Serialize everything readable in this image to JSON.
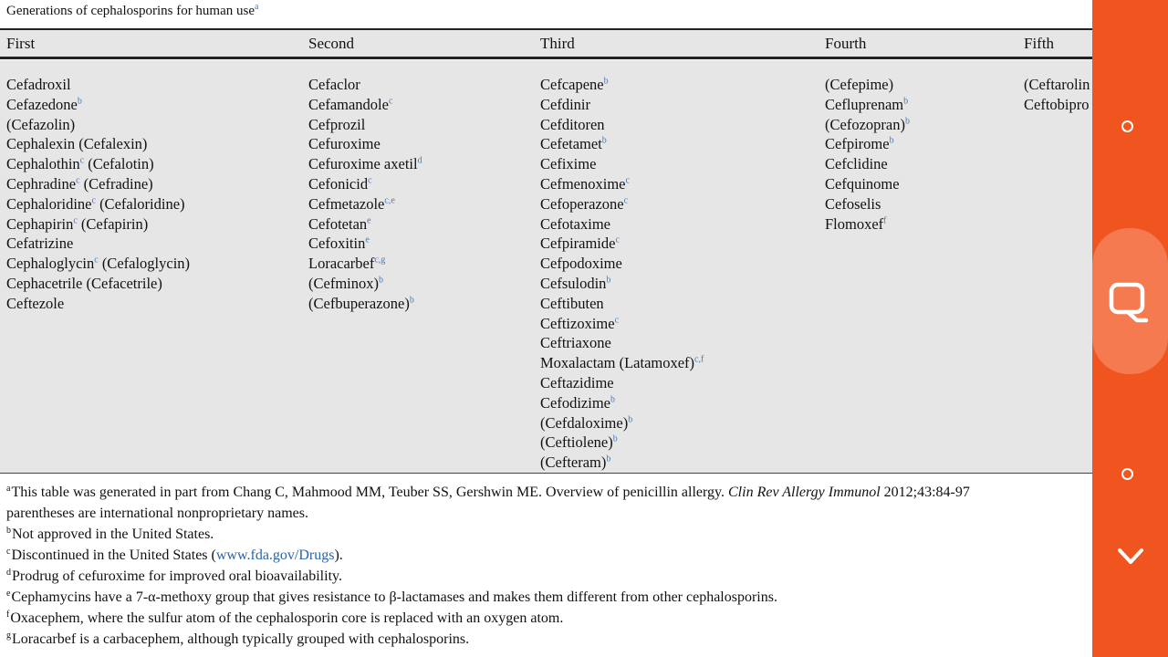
{
  "title": {
    "text": "Generations of cephalosporins for human use",
    "sup": "a"
  },
  "headers": [
    "First",
    "Second",
    "Third",
    "Fourth",
    "Fifth"
  ],
  "columns": [
    [
      {
        "name": "Cefadroxil",
        "sup": ""
      },
      {
        "name": "Cefazedone",
        "sup": "b"
      },
      {
        "name": "(Cefazolin)",
        "sup": ""
      },
      {
        "name": "Cephalexin (Cefalexin)",
        "sup": ""
      },
      {
        "name": "Cephalothin",
        "sup": "c",
        "rest": " (Cefalotin)"
      },
      {
        "name": "Cephradine",
        "sup": "c",
        "rest": " (Cefradine)"
      },
      {
        "name": "Cephaloridine",
        "sup": "c",
        "rest": " (Cefaloridine)"
      },
      {
        "name": "Cephapirin",
        "sup": "c",
        "rest": " (Cefapirin)"
      },
      {
        "name": "Cefatrizine",
        "sup": ""
      },
      {
        "name": "Cephaloglycin",
        "sup": "c",
        "rest": " (Cefaloglycin)"
      },
      {
        "name": "Cephacetrile (Cefacetrile)",
        "sup": ""
      },
      {
        "name": "Ceftezole",
        "sup": ""
      }
    ],
    [
      {
        "name": "Cefaclor",
        "sup": ""
      },
      {
        "name": "Cefamandole",
        "sup": "c"
      },
      {
        "name": "Cefprozil",
        "sup": ""
      },
      {
        "name": "Cefuroxime",
        "sup": ""
      },
      {
        "name": "Cefuroxime axetil",
        "sup": "d"
      },
      {
        "name": "Cefonicid",
        "sup": "c"
      },
      {
        "name": "Cefmetazole",
        "sup": "c,e"
      },
      {
        "name": "Cefotetan",
        "sup": "e"
      },
      {
        "name": "Cefoxitin",
        "sup": "e"
      },
      {
        "name": "Loracarbef",
        "sup": "c,g"
      },
      {
        "name": "(Cefminox)",
        "sup": "b"
      },
      {
        "name": "(Cefbuperazone)",
        "sup": "b"
      }
    ],
    [
      {
        "name": "Cefcapene",
        "sup": "b"
      },
      {
        "name": "Cefdinir",
        "sup": ""
      },
      {
        "name": "Cefditoren",
        "sup": ""
      },
      {
        "name": "Cefetamet",
        "sup": "b"
      },
      {
        "name": "Cefixime",
        "sup": ""
      },
      {
        "name": "Cefmenoxime",
        "sup": "c"
      },
      {
        "name": "Cefoperazone",
        "sup": "c"
      },
      {
        "name": "Cefotaxime",
        "sup": ""
      },
      {
        "name": "Cefpiramide",
        "sup": "c"
      },
      {
        "name": "Cefpodoxime",
        "sup": ""
      },
      {
        "name": "Cefsulodin",
        "sup": "b"
      },
      {
        "name": "Ceftibuten",
        "sup": ""
      },
      {
        "name": "Ceftizoxime",
        "sup": "c"
      },
      {
        "name": "Ceftriaxone",
        "sup": ""
      },
      {
        "name": "Moxalactam (Latamoxef)",
        "sup": "c,f"
      },
      {
        "name": "Ceftazidime",
        "sup": ""
      },
      {
        "name": "Cefodizime",
        "sup": "b"
      },
      {
        "name": "(Cefdaloxime)",
        "sup": "b"
      },
      {
        "name": "(Ceftiolene)",
        "sup": "b"
      },
      {
        "name": "(Cefteram)",
        "sup": "b"
      }
    ],
    [
      {
        "name": "(Cefepime)",
        "sup": ""
      },
      {
        "name": "Cefluprenam",
        "sup": "b"
      },
      {
        "name": "(Cefozopran)",
        "sup": "b"
      },
      {
        "name": "Cefpirome",
        "sup": "b"
      },
      {
        "name": "Cefclidine",
        "sup": ""
      },
      {
        "name": "Cefquinome",
        "sup": ""
      },
      {
        "name": "Cefoselis",
        "sup": ""
      },
      {
        "name": "Flomoxef",
        "sup": "f"
      }
    ],
    [
      {
        "name": "(Ceftarolin",
        "sup": ""
      },
      {
        "name": "Ceftobipro",
        "sup": ""
      }
    ]
  ],
  "footnotes": [
    {
      "sup": "a",
      "before": "This table was generated in part from Chang C, Mahmood MM, Teuber SS, Gershwin ME. Overview of penicillin allergy. ",
      "italic": "Clin Rev Allergy Immunol",
      "after": " 2012;43:84-97"
    },
    {
      "sup": "",
      "text": "parentheses are international nonproprietary names."
    },
    {
      "sup": "b",
      "text": "Not approved in the United States."
    },
    {
      "sup": "c",
      "before": "Discontinued in the United States (",
      "link": "www.fda.gov/Drugs",
      "after": ")."
    },
    {
      "sup": "d",
      "text": "Prodrug of cefuroxime for improved oral bioavailability."
    },
    {
      "sup": "e",
      "text": "Cephamycins have a 7-α-methoxy group that gives resistance to β-lactamases and makes them different from other cephalosporins."
    },
    {
      "sup": "f",
      "text": "Oxacephem, where the sulfur atom of the cephalosporin core is replaced with an oxygen atom."
    },
    {
      "sup": "g",
      "text": "Loracarbef is a carbacephem, although typically grouped with cephalosporins."
    }
  ],
  "sidebar": {
    "background": "#f0541f",
    "highlight": "#f57a4f",
    "icons": [
      "circle-icon",
      "search-icon",
      "circle-icon",
      "chevron-down-icon"
    ]
  }
}
